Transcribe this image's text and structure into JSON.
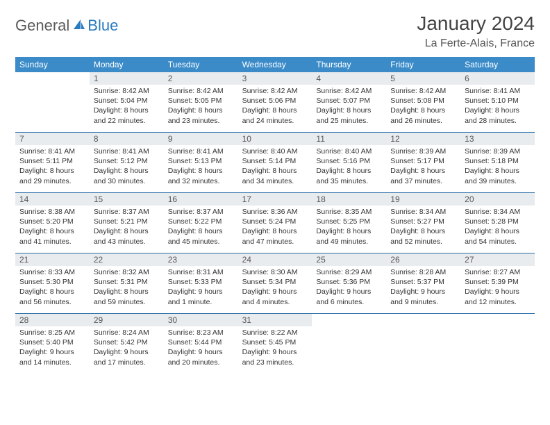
{
  "logo": {
    "word1": "General",
    "word2": "Blue",
    "color1": "#5a5a5a",
    "color2": "#2a7bbf"
  },
  "title": "January 2024",
  "location": "La Ferte-Alais, France",
  "colors": {
    "header_bg": "#3b8bc9",
    "header_text": "#ffffff",
    "daynum_bg": "#e9ecef",
    "border": "#2a6ea8",
    "text": "#333333"
  },
  "fonts": {
    "title_size": 28,
    "location_size": 16,
    "dow_size": 12,
    "daynum_size": 12,
    "body_size": 10.5
  },
  "days_of_week": [
    "Sunday",
    "Monday",
    "Tuesday",
    "Wednesday",
    "Thursday",
    "Friday",
    "Saturday"
  ],
  "weeks": [
    [
      {
        "n": "",
        "sunrise": "",
        "sunset": "",
        "daylight1": "",
        "daylight2": "",
        "empty": true
      },
      {
        "n": "1",
        "sunrise": "Sunrise: 8:42 AM",
        "sunset": "Sunset: 5:04 PM",
        "daylight1": "Daylight: 8 hours",
        "daylight2": "and 22 minutes."
      },
      {
        "n": "2",
        "sunrise": "Sunrise: 8:42 AM",
        "sunset": "Sunset: 5:05 PM",
        "daylight1": "Daylight: 8 hours",
        "daylight2": "and 23 minutes."
      },
      {
        "n": "3",
        "sunrise": "Sunrise: 8:42 AM",
        "sunset": "Sunset: 5:06 PM",
        "daylight1": "Daylight: 8 hours",
        "daylight2": "and 24 minutes."
      },
      {
        "n": "4",
        "sunrise": "Sunrise: 8:42 AM",
        "sunset": "Sunset: 5:07 PM",
        "daylight1": "Daylight: 8 hours",
        "daylight2": "and 25 minutes."
      },
      {
        "n": "5",
        "sunrise": "Sunrise: 8:42 AM",
        "sunset": "Sunset: 5:08 PM",
        "daylight1": "Daylight: 8 hours",
        "daylight2": "and 26 minutes."
      },
      {
        "n": "6",
        "sunrise": "Sunrise: 8:41 AM",
        "sunset": "Sunset: 5:10 PM",
        "daylight1": "Daylight: 8 hours",
        "daylight2": "and 28 minutes."
      }
    ],
    [
      {
        "n": "7",
        "sunrise": "Sunrise: 8:41 AM",
        "sunset": "Sunset: 5:11 PM",
        "daylight1": "Daylight: 8 hours",
        "daylight2": "and 29 minutes."
      },
      {
        "n": "8",
        "sunrise": "Sunrise: 8:41 AM",
        "sunset": "Sunset: 5:12 PM",
        "daylight1": "Daylight: 8 hours",
        "daylight2": "and 30 minutes."
      },
      {
        "n": "9",
        "sunrise": "Sunrise: 8:41 AM",
        "sunset": "Sunset: 5:13 PM",
        "daylight1": "Daylight: 8 hours",
        "daylight2": "and 32 minutes."
      },
      {
        "n": "10",
        "sunrise": "Sunrise: 8:40 AM",
        "sunset": "Sunset: 5:14 PM",
        "daylight1": "Daylight: 8 hours",
        "daylight2": "and 34 minutes."
      },
      {
        "n": "11",
        "sunrise": "Sunrise: 8:40 AM",
        "sunset": "Sunset: 5:16 PM",
        "daylight1": "Daylight: 8 hours",
        "daylight2": "and 35 minutes."
      },
      {
        "n": "12",
        "sunrise": "Sunrise: 8:39 AM",
        "sunset": "Sunset: 5:17 PM",
        "daylight1": "Daylight: 8 hours",
        "daylight2": "and 37 minutes."
      },
      {
        "n": "13",
        "sunrise": "Sunrise: 8:39 AM",
        "sunset": "Sunset: 5:18 PM",
        "daylight1": "Daylight: 8 hours",
        "daylight2": "and 39 minutes."
      }
    ],
    [
      {
        "n": "14",
        "sunrise": "Sunrise: 8:38 AM",
        "sunset": "Sunset: 5:20 PM",
        "daylight1": "Daylight: 8 hours",
        "daylight2": "and 41 minutes."
      },
      {
        "n": "15",
        "sunrise": "Sunrise: 8:37 AM",
        "sunset": "Sunset: 5:21 PM",
        "daylight1": "Daylight: 8 hours",
        "daylight2": "and 43 minutes."
      },
      {
        "n": "16",
        "sunrise": "Sunrise: 8:37 AM",
        "sunset": "Sunset: 5:22 PM",
        "daylight1": "Daylight: 8 hours",
        "daylight2": "and 45 minutes."
      },
      {
        "n": "17",
        "sunrise": "Sunrise: 8:36 AM",
        "sunset": "Sunset: 5:24 PM",
        "daylight1": "Daylight: 8 hours",
        "daylight2": "and 47 minutes."
      },
      {
        "n": "18",
        "sunrise": "Sunrise: 8:35 AM",
        "sunset": "Sunset: 5:25 PM",
        "daylight1": "Daylight: 8 hours",
        "daylight2": "and 49 minutes."
      },
      {
        "n": "19",
        "sunrise": "Sunrise: 8:34 AM",
        "sunset": "Sunset: 5:27 PM",
        "daylight1": "Daylight: 8 hours",
        "daylight2": "and 52 minutes."
      },
      {
        "n": "20",
        "sunrise": "Sunrise: 8:34 AM",
        "sunset": "Sunset: 5:28 PM",
        "daylight1": "Daylight: 8 hours",
        "daylight2": "and 54 minutes."
      }
    ],
    [
      {
        "n": "21",
        "sunrise": "Sunrise: 8:33 AM",
        "sunset": "Sunset: 5:30 PM",
        "daylight1": "Daylight: 8 hours",
        "daylight2": "and 56 minutes."
      },
      {
        "n": "22",
        "sunrise": "Sunrise: 8:32 AM",
        "sunset": "Sunset: 5:31 PM",
        "daylight1": "Daylight: 8 hours",
        "daylight2": "and 59 minutes."
      },
      {
        "n": "23",
        "sunrise": "Sunrise: 8:31 AM",
        "sunset": "Sunset: 5:33 PM",
        "daylight1": "Daylight: 9 hours",
        "daylight2": "and 1 minute."
      },
      {
        "n": "24",
        "sunrise": "Sunrise: 8:30 AM",
        "sunset": "Sunset: 5:34 PM",
        "daylight1": "Daylight: 9 hours",
        "daylight2": "and 4 minutes."
      },
      {
        "n": "25",
        "sunrise": "Sunrise: 8:29 AM",
        "sunset": "Sunset: 5:36 PM",
        "daylight1": "Daylight: 9 hours",
        "daylight2": "and 6 minutes."
      },
      {
        "n": "26",
        "sunrise": "Sunrise: 8:28 AM",
        "sunset": "Sunset: 5:37 PM",
        "daylight1": "Daylight: 9 hours",
        "daylight2": "and 9 minutes."
      },
      {
        "n": "27",
        "sunrise": "Sunrise: 8:27 AM",
        "sunset": "Sunset: 5:39 PM",
        "daylight1": "Daylight: 9 hours",
        "daylight2": "and 12 minutes."
      }
    ],
    [
      {
        "n": "28",
        "sunrise": "Sunrise: 8:25 AM",
        "sunset": "Sunset: 5:40 PM",
        "daylight1": "Daylight: 9 hours",
        "daylight2": "and 14 minutes."
      },
      {
        "n": "29",
        "sunrise": "Sunrise: 8:24 AM",
        "sunset": "Sunset: 5:42 PM",
        "daylight1": "Daylight: 9 hours",
        "daylight2": "and 17 minutes."
      },
      {
        "n": "30",
        "sunrise": "Sunrise: 8:23 AM",
        "sunset": "Sunset: 5:44 PM",
        "daylight1": "Daylight: 9 hours",
        "daylight2": "and 20 minutes."
      },
      {
        "n": "31",
        "sunrise": "Sunrise: 8:22 AM",
        "sunset": "Sunset: 5:45 PM",
        "daylight1": "Daylight: 9 hours",
        "daylight2": "and 23 minutes."
      },
      {
        "n": "",
        "sunrise": "",
        "sunset": "",
        "daylight1": "",
        "daylight2": "",
        "empty": true
      },
      {
        "n": "",
        "sunrise": "",
        "sunset": "",
        "daylight1": "",
        "daylight2": "",
        "empty": true
      },
      {
        "n": "",
        "sunrise": "",
        "sunset": "",
        "daylight1": "",
        "daylight2": "",
        "empty": true
      }
    ]
  ]
}
